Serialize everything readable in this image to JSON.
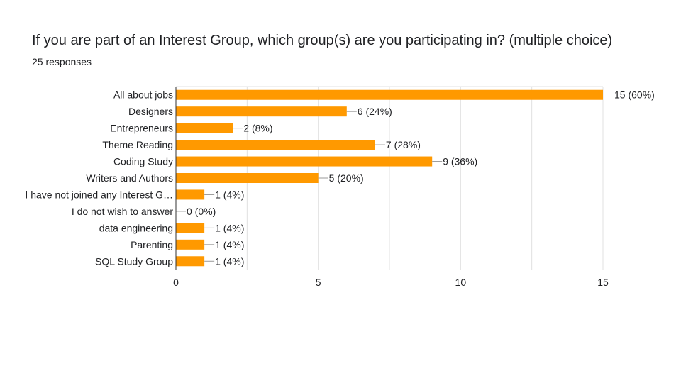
{
  "title": "If you are part of an Interest Group, which group(s) are you participating in?  (multiple choice)",
  "subtitle": "25 responses",
  "colors": {
    "bar": "#ff9900",
    "grid": "#e0e0e0",
    "text": "#202124",
    "axis": "#333333",
    "leader": "#999999"
  },
  "chart_data": {
    "type": "bar",
    "orientation": "horizontal",
    "categories": [
      "All about jobs",
      "Designers",
      "Entrepreneurs",
      "Theme Reading",
      "Coding Study",
      "Writers and Authors",
      "I have not joined any Interest G…",
      "I do not wish to answer",
      "data engineering",
      "Parenting",
      "SQL Study Group"
    ],
    "values": [
      15,
      6,
      2,
      7,
      9,
      5,
      1,
      0,
      1,
      1,
      1
    ],
    "data_labels": [
      "15 (60%)",
      "6 (24%)",
      "2 (8%)",
      "7 (28%)",
      "9 (36%)",
      "5 (20%)",
      "1 (4%)",
      "0 (0%)",
      "1 (4%)",
      "1 (4%)",
      "1 (4%)"
    ],
    "xlim": [
      0,
      15
    ],
    "xticks": [
      0,
      5,
      10,
      15
    ],
    "grid": true
  }
}
